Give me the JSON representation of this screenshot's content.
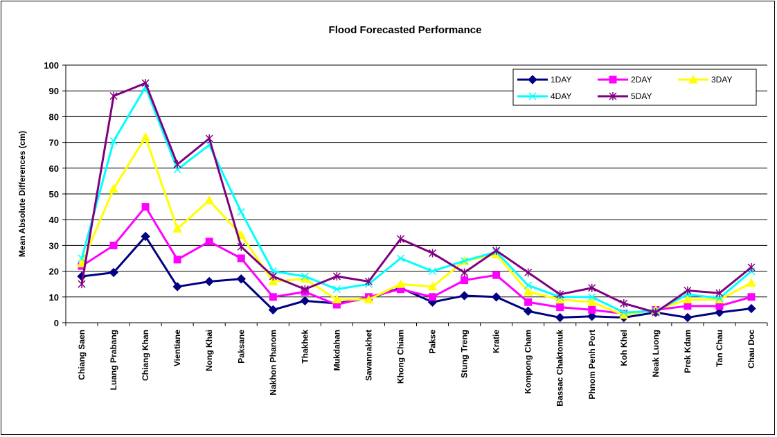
{
  "chart_data": {
    "type": "line",
    "title": "Flood Forecasted Performance",
    "xlabel": "",
    "ylabel": "Mean Absolute Differences (cm)",
    "ylim": [
      0,
      100
    ],
    "yticks": [
      0,
      10,
      20,
      30,
      40,
      50,
      60,
      70,
      80,
      90,
      100
    ],
    "grid": "horizontal",
    "legend_position": "top-right",
    "categories": [
      "Chiang Saen",
      "Luang Prabang",
      "Chiang Khan",
      "Vientiane",
      "Nong Khai",
      "Paksane",
      "Nakhon Phanom",
      "Thakhek",
      "Mukdahan",
      "Savannakhet",
      "Khong Chiam",
      "Pakse",
      "Stung Treng",
      "Kratie",
      "Kompong Cham",
      "Bassac Chaktomuk",
      "Phnom Penh Port",
      "Koh Khel",
      "Neak Luong",
      "Prek Kdam",
      "Tan Chau",
      "Chau Doc"
    ],
    "series": [
      {
        "name": "1DAY",
        "color": "#000080",
        "marker": "diamond",
        "values": [
          18,
          19.5,
          33.5,
          14,
          16,
          17,
          5,
          8.5,
          7.5,
          9.5,
          13.5,
          8,
          10.5,
          10,
          4.5,
          2,
          2.5,
          2,
          4,
          2,
          4,
          5.5
        ]
      },
      {
        "name": "2DAY",
        "color": "#ff00ff",
        "marker": "square",
        "values": [
          22,
          30,
          45,
          24.5,
          31.5,
          25,
          10,
          12,
          7,
          10,
          13,
          10,
          16.5,
          18.5,
          8,
          6,
          5,
          3.5,
          5,
          6.5,
          6.5,
          10
        ]
      },
      {
        "name": "3DAY",
        "color": "#ffff00",
        "marker": "triangle",
        "values": [
          23,
          52,
          72,
          36.5,
          47.5,
          34,
          16,
          17,
          9,
          9,
          15,
          14,
          24,
          26.5,
          12,
          9,
          8,
          3,
          5,
          9,
          9,
          15.5
        ]
      },
      {
        "name": "4DAY",
        "color": "#00ffff",
        "marker": "x",
        "values": [
          25,
          70.5,
          91.5,
          59.5,
          69,
          43,
          20,
          18,
          13,
          15,
          25,
          20,
          24,
          27.5,
          14.5,
          10,
          10,
          4,
          4.5,
          11,
          9.5,
          20
        ]
      },
      {
        "name": "5DAY",
        "color": "#800080",
        "marker": "star",
        "values": [
          15,
          88,
          93,
          61.5,
          71.5,
          29.5,
          18,
          13,
          18,
          16,
          32.5,
          27,
          19.5,
          28,
          19.5,
          11,
          13.5,
          7.5,
          4,
          12.5,
          11.5,
          21.5
        ]
      }
    ]
  }
}
